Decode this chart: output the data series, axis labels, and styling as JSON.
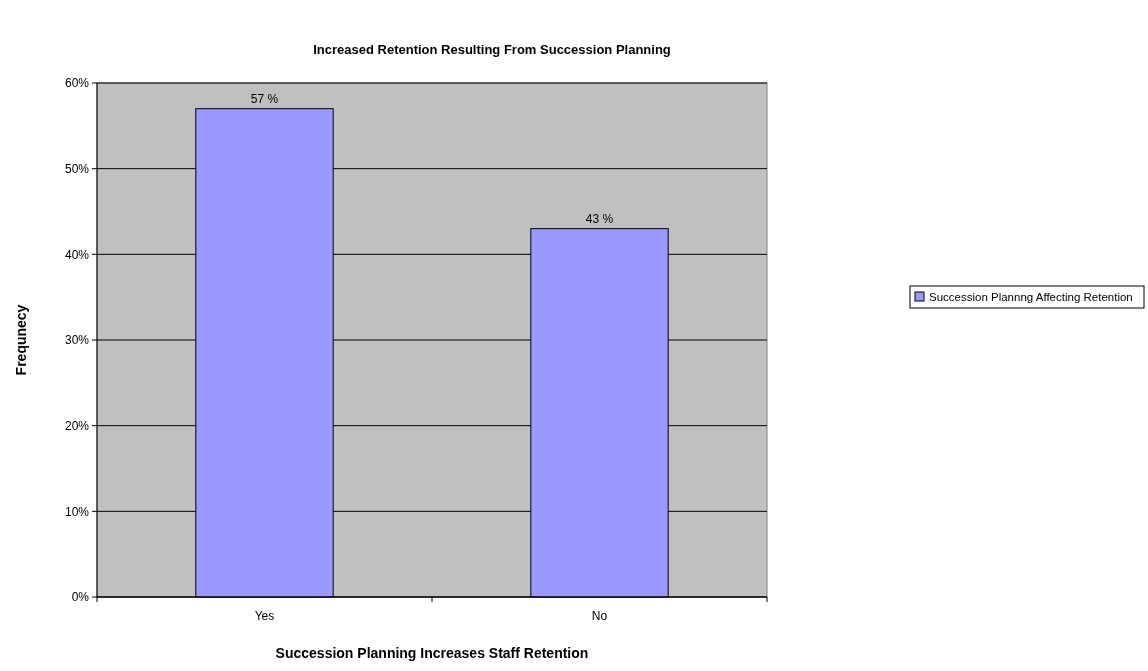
{
  "chart_data": {
    "type": "bar",
    "title": "Increased Retention Resulting From Succession Planning",
    "xlabel": "Succession Planning Increases Staff Retention",
    "ylabel": "Frequnecy",
    "categories": [
      "Yes",
      "No"
    ],
    "series": [
      {
        "name": "Succession Plannng Affecting Retention",
        "color": "#9999ff",
        "values": [
          57,
          43
        ],
        "value_labels": [
          "57 %",
          "43 %"
        ]
      }
    ],
    "ylim": [
      0,
      60
    ],
    "yticks": [
      {
        "value": 0,
        "label": "0%"
      },
      {
        "value": 10,
        "label": "10%"
      },
      {
        "value": 20,
        "label": "20%"
      },
      {
        "value": 30,
        "label": "30%"
      },
      {
        "value": 40,
        "label": "40%"
      },
      {
        "value": 50,
        "label": "50%"
      },
      {
        "value": 60,
        "label": "60%"
      }
    ],
    "grid": "y",
    "legend": "right"
  }
}
